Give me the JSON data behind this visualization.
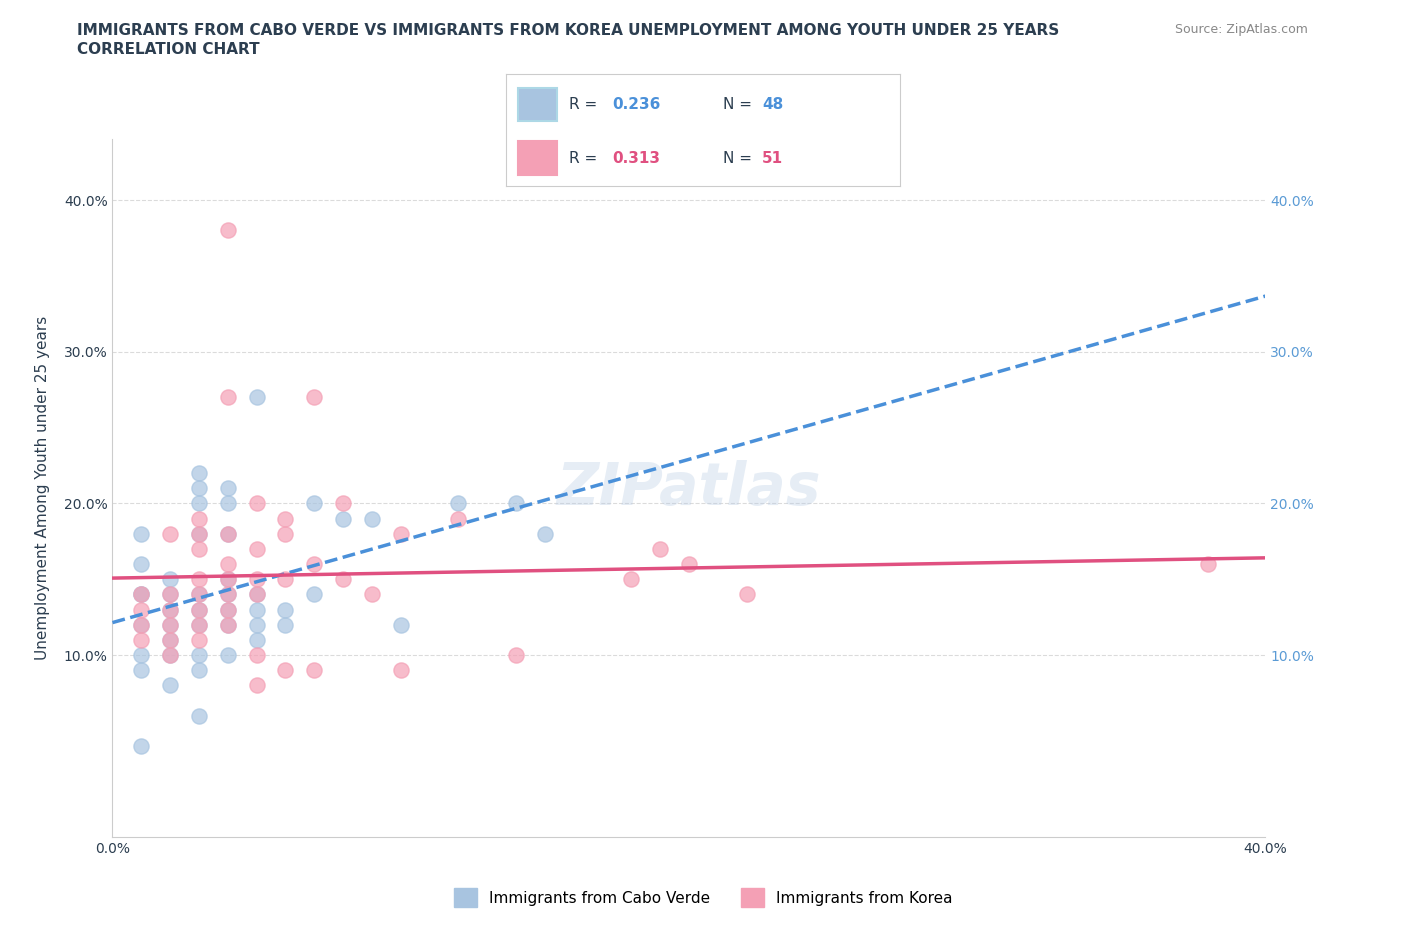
{
  "title_line1": "IMMIGRANTS FROM CABO VERDE VS IMMIGRANTS FROM KOREA UNEMPLOYMENT AMONG YOUTH UNDER 25 YEARS",
  "title_line2": "CORRELATION CHART",
  "source_text": "Source: ZipAtlas.com",
  "xlabel": "",
  "ylabel": "Unemployment Among Youth under 25 years",
  "xlim": [
    0.0,
    0.4
  ],
  "ylim": [
    -0.02,
    0.44
  ],
  "xticks": [
    0.0,
    0.1,
    0.2,
    0.3,
    0.4
  ],
  "yticks_left": [
    0.1,
    0.2,
    0.3,
    0.4
  ],
  "yticks_right": [
    0.1,
    0.2,
    0.3,
    0.4
  ],
  "xtick_labels": [
    "0.0%",
    "",
    "",
    "",
    "40.0%"
  ],
  "ytick_labels_left": [
    "10.0%",
    "20.0%",
    "30.0%",
    "40.0%"
  ],
  "ytick_labels_right": [
    "10.0%",
    "20.0%",
    "30.0%",
    "40.0%"
  ],
  "watermark": "ZIPatlas",
  "legend_r1": "R = 0.236",
  "legend_n1": "N = 48",
  "legend_r2": "R = 0.313",
  "legend_n2": "N = 51",
  "cabo_verde_color": "#a8c4e0",
  "korea_color": "#f4a0b5",
  "cabo_verde_line_color": "#4a90d9",
  "korea_line_color": "#e05080",
  "cabo_verde_scatter": [
    [
      0.01,
      0.14
    ],
    [
      0.01,
      0.16
    ],
    [
      0.01,
      0.18
    ],
    [
      0.01,
      0.12
    ],
    [
      0.01,
      0.1
    ],
    [
      0.01,
      0.14
    ],
    [
      0.01,
      0.09
    ],
    [
      0.02,
      0.14
    ],
    [
      0.02,
      0.15
    ],
    [
      0.02,
      0.13
    ],
    [
      0.02,
      0.12
    ],
    [
      0.02,
      0.1
    ],
    [
      0.02,
      0.11
    ],
    [
      0.02,
      0.08
    ],
    [
      0.03,
      0.22
    ],
    [
      0.03,
      0.21
    ],
    [
      0.03,
      0.2
    ],
    [
      0.03,
      0.18
    ],
    [
      0.03,
      0.14
    ],
    [
      0.03,
      0.13
    ],
    [
      0.03,
      0.12
    ],
    [
      0.03,
      0.1
    ],
    [
      0.03,
      0.09
    ],
    [
      0.04,
      0.21
    ],
    [
      0.04,
      0.2
    ],
    [
      0.04,
      0.18
    ],
    [
      0.04,
      0.15
    ],
    [
      0.04,
      0.14
    ],
    [
      0.04,
      0.13
    ],
    [
      0.04,
      0.12
    ],
    [
      0.04,
      0.1
    ],
    [
      0.05,
      0.27
    ],
    [
      0.05,
      0.14
    ],
    [
      0.05,
      0.13
    ],
    [
      0.05,
      0.12
    ],
    [
      0.05,
      0.11
    ],
    [
      0.06,
      0.13
    ],
    [
      0.06,
      0.12
    ],
    [
      0.07,
      0.2
    ],
    [
      0.07,
      0.14
    ],
    [
      0.08,
      0.19
    ],
    [
      0.09,
      0.19
    ],
    [
      0.1,
      0.12
    ],
    [
      0.12,
      0.2
    ],
    [
      0.14,
      0.2
    ],
    [
      0.15,
      0.18
    ],
    [
      0.01,
      0.04
    ],
    [
      0.03,
      0.06
    ]
  ],
  "korea_scatter": [
    [
      0.01,
      0.14
    ],
    [
      0.01,
      0.13
    ],
    [
      0.01,
      0.12
    ],
    [
      0.01,
      0.11
    ],
    [
      0.02,
      0.14
    ],
    [
      0.02,
      0.13
    ],
    [
      0.02,
      0.18
    ],
    [
      0.02,
      0.12
    ],
    [
      0.02,
      0.11
    ],
    [
      0.02,
      0.1
    ],
    [
      0.03,
      0.19
    ],
    [
      0.03,
      0.18
    ],
    [
      0.03,
      0.17
    ],
    [
      0.03,
      0.15
    ],
    [
      0.03,
      0.14
    ],
    [
      0.03,
      0.13
    ],
    [
      0.03,
      0.12
    ],
    [
      0.03,
      0.11
    ],
    [
      0.04,
      0.38
    ],
    [
      0.04,
      0.27
    ],
    [
      0.04,
      0.18
    ],
    [
      0.04,
      0.16
    ],
    [
      0.04,
      0.15
    ],
    [
      0.04,
      0.14
    ],
    [
      0.04,
      0.13
    ],
    [
      0.04,
      0.12
    ],
    [
      0.05,
      0.2
    ],
    [
      0.05,
      0.17
    ],
    [
      0.05,
      0.15
    ],
    [
      0.05,
      0.14
    ],
    [
      0.05,
      0.1
    ],
    [
      0.06,
      0.19
    ],
    [
      0.06,
      0.18
    ],
    [
      0.06,
      0.15
    ],
    [
      0.06,
      0.09
    ],
    [
      0.07,
      0.27
    ],
    [
      0.07,
      0.16
    ],
    [
      0.07,
      0.09
    ],
    [
      0.08,
      0.2
    ],
    [
      0.08,
      0.15
    ],
    [
      0.09,
      0.14
    ],
    [
      0.1,
      0.18
    ],
    [
      0.1,
      0.09
    ],
    [
      0.12,
      0.19
    ],
    [
      0.14,
      0.1
    ],
    [
      0.18,
      0.15
    ],
    [
      0.19,
      0.17
    ],
    [
      0.2,
      0.16
    ],
    [
      0.22,
      0.14
    ],
    [
      0.38,
      0.16
    ],
    [
      0.05,
      0.08
    ]
  ],
  "background_color": "#ffffff",
  "grid_color": "#cccccc",
  "title_color": "#2c3e50",
  "axis_label_color": "#2c3e50",
  "tick_color_right": "#5b9bd5",
  "scatter_size": 120,
  "scatter_alpha": 0.7
}
